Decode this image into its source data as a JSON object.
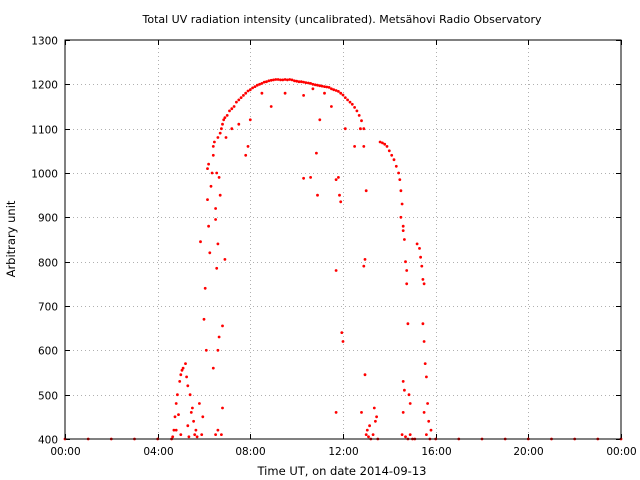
{
  "chart_data": {
    "type": "scatter",
    "title": "Total UV radiation intensity (uncalibrated). Metsähovi Radio Observatory",
    "xlabel": "Time UT, on date 2014-09-13",
    "ylabel": "Arbitrary unit",
    "x_unit": "hours UT",
    "xlim": [
      0,
      24
    ],
    "ylim": [
      400,
      1300
    ],
    "x_ticks": [
      {
        "value": 0,
        "label": "00:00"
      },
      {
        "value": 4,
        "label": "04:00"
      },
      {
        "value": 8,
        "label": "08:00"
      },
      {
        "value": 12,
        "label": "12:00"
      },
      {
        "value": 16,
        "label": "16:00"
      },
      {
        "value": 20,
        "label": "20:00"
      },
      {
        "value": 24,
        "label": "00:00"
      }
    ],
    "y_ticks": [
      {
        "value": 400,
        "label": "400"
      },
      {
        "value": 500,
        "label": "500"
      },
      {
        "value": 600,
        "label": "600"
      },
      {
        "value": 700,
        "label": "700"
      },
      {
        "value": 800,
        "label": "800"
      },
      {
        "value": 900,
        "label": "900"
      },
      {
        "value": 1000,
        "label": "1000"
      },
      {
        "value": 1100,
        "label": "1100"
      },
      {
        "value": 1200,
        "label": "1200"
      },
      {
        "value": 1300,
        "label": "1300"
      }
    ],
    "grid": true,
    "marker_color": "#ff0000",
    "series": [
      {
        "points": [
          [
            0.0,
            400
          ],
          [
            1.0,
            400
          ],
          [
            2.0,
            400
          ],
          [
            3.0,
            400
          ],
          [
            4.0,
            400
          ],
          [
            4.6,
            400
          ],
          [
            4.65,
            405
          ],
          [
            4.7,
            420
          ],
          [
            4.75,
            450
          ],
          [
            4.8,
            480
          ],
          [
            4.85,
            500
          ],
          [
            4.95,
            530
          ],
          [
            5.0,
            545
          ],
          [
            5.05,
            555
          ],
          [
            5.1,
            560
          ],
          [
            5.2,
            570
          ],
          [
            5.25,
            540
          ],
          [
            5.3,
            520
          ],
          [
            5.4,
            500
          ],
          [
            5.5,
            470
          ],
          [
            5.55,
            440
          ],
          [
            5.6,
            410
          ],
          [
            4.8,
            420
          ],
          [
            4.9,
            455
          ],
          [
            5.0,
            410
          ],
          [
            5.3,
            430
          ],
          [
            5.35,
            405
          ],
          [
            5.45,
            460
          ],
          [
            5.65,
            420
          ],
          [
            5.7,
            405
          ],
          [
            5.8,
            480
          ],
          [
            5.9,
            410
          ],
          [
            5.95,
            450
          ],
          [
            5.85,
            845
          ],
          [
            6.0,
            670
          ],
          [
            6.05,
            740
          ],
          [
            6.1,
            600
          ],
          [
            6.15,
            940
          ],
          [
            6.15,
            1010
          ],
          [
            6.2,
            1020
          ],
          [
            6.2,
            880
          ],
          [
            6.25,
            820
          ],
          [
            6.3,
            970
          ],
          [
            6.35,
            1000
          ],
          [
            6.4,
            1040
          ],
          [
            6.4,
            1060
          ],
          [
            6.45,
            1070
          ],
          [
            6.5,
            895
          ],
          [
            6.5,
            920
          ],
          [
            6.55,
            1000
          ],
          [
            6.6,
            1080
          ],
          [
            6.65,
            990
          ],
          [
            6.7,
            1090
          ],
          [
            6.7,
            950
          ],
          [
            6.75,
            1100
          ],
          [
            6.8,
            1110
          ],
          [
            6.85,
            1120
          ],
          [
            6.9,
            1125
          ],
          [
            6.9,
            805
          ],
          [
            6.8,
            655
          ],
          [
            6.65,
            630
          ],
          [
            6.6,
            600
          ],
          [
            6.55,
            785
          ],
          [
            6.6,
            840
          ],
          [
            6.4,
            560
          ],
          [
            6.5,
            410
          ],
          [
            6.6,
            420
          ],
          [
            6.75,
            410
          ],
          [
            6.8,
            470
          ],
          [
            6.95,
            1080
          ],
          [
            7.0,
            1130
          ],
          [
            7.1,
            1140
          ],
          [
            7.2,
            1145
          ],
          [
            7.3,
            1150
          ],
          [
            7.4,
            1160
          ],
          [
            7.5,
            1165
          ],
          [
            7.6,
            1170
          ],
          [
            7.7,
            1175
          ],
          [
            7.8,
            1180
          ],
          [
            7.9,
            1185
          ],
          [
            8.0,
            1188
          ],
          [
            8.1,
            1192
          ],
          [
            8.2,
            1195
          ],
          [
            8.3,
            1198
          ],
          [
            8.4,
            1200
          ],
          [
            8.5,
            1202
          ],
          [
            8.6,
            1205
          ],
          [
            8.7,
            1206
          ],
          [
            8.8,
            1208
          ],
          [
            8.9,
            1209
          ],
          [
            9.0,
            1210
          ],
          [
            9.1,
            1211
          ],
          [
            9.2,
            1211
          ],
          [
            9.3,
            1210
          ],
          [
            9.4,
            1210
          ],
          [
            9.5,
            1211
          ],
          [
            9.6,
            1210
          ],
          [
            9.7,
            1211
          ],
          [
            9.8,
            1210
          ],
          [
            9.9,
            1208
          ],
          [
            10.0,
            1207
          ],
          [
            10.1,
            1206
          ],
          [
            10.2,
            1206
          ],
          [
            10.3,
            1205
          ],
          [
            10.4,
            1204
          ],
          [
            10.5,
            1203
          ],
          [
            10.6,
            1202
          ],
          [
            10.7,
            1200
          ],
          [
            10.8,
            1199
          ],
          [
            10.9,
            1198
          ],
          [
            11.0,
            1197
          ],
          [
            11.1,
            1196
          ],
          [
            11.2,
            1195
          ],
          [
            11.3,
            1194
          ],
          [
            11.4,
            1193
          ],
          [
            11.5,
            1190
          ],
          [
            11.6,
            1188
          ],
          [
            11.7,
            1186
          ],
          [
            11.8,
            1184
          ],
          [
            11.9,
            1180
          ],
          [
            12.0,
            1176
          ],
          [
            12.1,
            1170
          ],
          [
            12.2,
            1165
          ],
          [
            12.3,
            1160
          ],
          [
            12.4,
            1155
          ],
          [
            12.5,
            1148
          ],
          [
            12.6,
            1140
          ],
          [
            12.7,
            1130
          ],
          [
            12.8,
            1118
          ],
          [
            12.9,
            1100
          ],
          [
            7.5,
            1110
          ],
          [
            7.8,
            1040
          ],
          [
            8.0,
            1120
          ],
          [
            7.9,
            1060
          ],
          [
            7.2,
            1100
          ],
          [
            8.5,
            1180
          ],
          [
            8.9,
            1150
          ],
          [
            9.5,
            1180
          ],
          [
            10.3,
            1175
          ],
          [
            10.7,
            1190
          ],
          [
            10.85,
            1045
          ],
          [
            10.9,
            950
          ],
          [
            10.6,
            990
          ],
          [
            10.3,
            988
          ],
          [
            11.0,
            1120
          ],
          [
            11.2,
            1180
          ],
          [
            11.5,
            1150
          ],
          [
            11.7,
            985
          ],
          [
            11.8,
            990
          ],
          [
            11.85,
            950
          ],
          [
            11.9,
            935
          ],
          [
            11.95,
            640
          ],
          [
            12.0,
            620
          ],
          [
            11.7,
            780
          ],
          [
            11.7,
            460
          ],
          [
            12.1,
            1100
          ],
          [
            12.5,
            1060
          ],
          [
            12.75,
            1100
          ],
          [
            12.9,
            1060
          ],
          [
            13.0,
            960
          ],
          [
            12.95,
            805
          ],
          [
            12.9,
            790
          ],
          [
            12.95,
            545
          ],
          [
            12.8,
            460
          ],
          [
            13.0,
            410
          ],
          [
            13.05,
            420
          ],
          [
            13.1,
            405
          ],
          [
            13.15,
            430
          ],
          [
            13.2,
            400
          ],
          [
            13.3,
            410
          ],
          [
            13.35,
            470
          ],
          [
            13.4,
            440
          ],
          [
            13.45,
            450
          ],
          [
            13.5,
            400
          ],
          [
            13.6,
            1070
          ],
          [
            13.7,
            1068
          ],
          [
            13.8,
            1065
          ],
          [
            13.9,
            1060
          ],
          [
            14.0,
            1050
          ],
          [
            14.1,
            1040
          ],
          [
            14.2,
            1030
          ],
          [
            14.3,
            1015
          ],
          [
            14.4,
            1000
          ],
          [
            14.45,
            985
          ],
          [
            14.5,
            960
          ],
          [
            14.5,
            900
          ],
          [
            14.55,
            930
          ],
          [
            14.6,
            880
          ],
          [
            14.6,
            870
          ],
          [
            14.65,
            850
          ],
          [
            14.7,
            800
          ],
          [
            14.75,
            780
          ],
          [
            14.75,
            750
          ],
          [
            14.8,
            660
          ],
          [
            14.85,
            500
          ],
          [
            14.9,
            480
          ],
          [
            14.6,
            530
          ],
          [
            14.65,
            510
          ],
          [
            14.6,
            460
          ],
          [
            14.55,
            410
          ],
          [
            14.7,
            405
          ],
          [
            14.8,
            400
          ],
          [
            14.9,
            410
          ],
          [
            15.0,
            400
          ],
          [
            15.1,
            400
          ],
          [
            15.2,
            840
          ],
          [
            15.3,
            830
          ],
          [
            15.35,
            810
          ],
          [
            15.4,
            790
          ],
          [
            15.45,
            760
          ],
          [
            15.5,
            750
          ],
          [
            15.45,
            660
          ],
          [
            15.5,
            620
          ],
          [
            15.55,
            570
          ],
          [
            15.6,
            540
          ],
          [
            15.65,
            480
          ],
          [
            15.7,
            440
          ],
          [
            15.75,
            400
          ],
          [
            15.6,
            410
          ],
          [
            15.5,
            460
          ],
          [
            15.8,
            420
          ],
          [
            16.0,
            400
          ],
          [
            17.0,
            400
          ],
          [
            18.0,
            400
          ],
          [
            19.0,
            400
          ],
          [
            20.0,
            400
          ],
          [
            21.0,
            400
          ],
          [
            22.0,
            400
          ],
          [
            23.0,
            400
          ],
          [
            24.0,
            400
          ]
        ]
      }
    ]
  }
}
